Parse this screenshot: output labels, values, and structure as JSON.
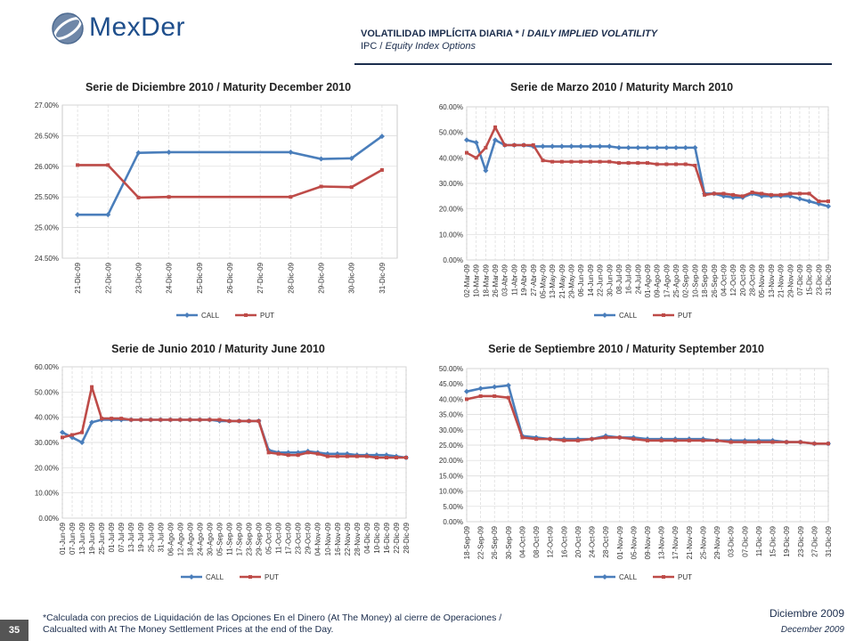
{
  "header": {
    "logo": "MexDer",
    "title_es": "VOLATILIDAD IMPLÍCITA DIARIA *",
    "separator": "/",
    "title_en": "DAILY IMPLIED VOLATILITY",
    "subtitle_es": "IPC",
    "subtitle_en": "Equity Index Options"
  },
  "footnote": {
    "line1": "*Calculada con precios de Liquidación de las Opciones En el Dinero (At The Money) al cierre de Operaciones /",
    "line2": "Calcualted with At The Money Settlement Prices at the end of the Day."
  },
  "footer": {
    "page_number": "35",
    "date_es": "Diciembre 2009",
    "date_en": "December  2009"
  },
  "colors": {
    "call": "#4a7ebb",
    "put": "#be4b48",
    "grid": "#d9d9d9"
  },
  "chart_data": [
    {
      "type": "line",
      "title": "Serie de Diciembre 2010 / Maturity December 2010",
      "ylim": [
        0.245,
        0.27
      ],
      "yticks": [
        "24.50%",
        "25.00%",
        "25.50%",
        "26.00%",
        "26.50%",
        "27.00%"
      ],
      "x": [
        "21-Dic-09",
        "22-Dic-09",
        "23-Dic-09",
        "24-Dic-09",
        "25-Dic-09",
        "26-Dic-09",
        "27-Dic-09",
        "28-Dic-09",
        "29-Dic-09",
        "30-Dic-09",
        "31-Dic-09"
      ],
      "markers": "sparse",
      "series": [
        {
          "name": "CALL",
          "values": [
            0.2521,
            0.2521,
            0.2622,
            0.2623,
            null,
            null,
            null,
            0.2623,
            0.2612,
            0.2613,
            0.2649
          ]
        },
        {
          "name": "PUT",
          "values": [
            0.2602,
            0.2602,
            0.2549,
            0.255,
            null,
            null,
            null,
            0.255,
            0.2567,
            0.2566,
            0.2594
          ]
        }
      ],
      "grid": true,
      "legend": "bottom"
    },
    {
      "type": "line",
      "title": "Serie de Marzo 2010 / Maturity March 2010",
      "ylim": [
        0,
        0.6
      ],
      "yticks": [
        "0.00%",
        "10.00%",
        "20.00%",
        "30.00%",
        "40.00%",
        "50.00%",
        "60.00%"
      ],
      "x": [
        "02-Mar-09",
        "10-Mar-09",
        "18-Mar-09",
        "26-Mar-09",
        "03-Abr-09",
        "11-Abr-09",
        "19-Abr-09",
        "27-Abr-09",
        "05-May-09",
        "13-May-09",
        "21-May-09",
        "29-May-09",
        "06-Jun-09",
        "14-Jun-09",
        "22-Jun-09",
        "30-Jun-09",
        "08-Jul-09",
        "16-Jul-09",
        "24-Jul-09",
        "01-Ago-09",
        "09-Ago-09",
        "17-Ago-09",
        "25-Ago-09",
        "02-Sep-09",
        "10-Sep-09",
        "18-Sep-09",
        "26-Sep-09",
        "04-Oct-09",
        "12-Oct-09",
        "20-Oct-09",
        "28-Oct-09",
        "05-Nov-09",
        "13-Nov-09",
        "21-Nov-09",
        "29-Nov-09",
        "07-Dic-09",
        "15-Dic-09",
        "23-Dic-09",
        "31-Dic-09"
      ],
      "markers": "dense",
      "series": [
        {
          "name": "CALL",
          "values": [
            0.47,
            0.46,
            0.35,
            0.47,
            0.45,
            0.45,
            0.45,
            0.445,
            0.445,
            0.445,
            0.445,
            0.445,
            0.445,
            0.445,
            0.445,
            0.445,
            0.44,
            0.44,
            0.44,
            0.44,
            0.44,
            0.44,
            0.44,
            0.44,
            0.44,
            0.26,
            0.26,
            0.25,
            0.245,
            0.245,
            0.26,
            0.25,
            0.25,
            0.25,
            0.25,
            0.24,
            0.23,
            0.22,
            0.21
          ]
        },
        {
          "name": "PUT",
          "values": [
            0.42,
            0.4,
            0.44,
            0.52,
            0.45,
            0.45,
            0.45,
            0.45,
            0.39,
            0.385,
            0.385,
            0.385,
            0.385,
            0.385,
            0.385,
            0.385,
            0.38,
            0.38,
            0.38,
            0.38,
            0.375,
            0.375,
            0.375,
            0.375,
            0.37,
            0.255,
            0.26,
            0.26,
            0.255,
            0.25,
            0.265,
            0.26,
            0.255,
            0.255,
            0.26,
            0.26,
            0.26,
            0.23,
            0.23
          ]
        }
      ],
      "grid": true,
      "legend": "bottom"
    },
    {
      "type": "line",
      "title": "Serie de Junio 2010 / Maturity June 2010",
      "ylim": [
        0,
        0.6
      ],
      "yticks": [
        "0.00%",
        "10.00%",
        "20.00%",
        "30.00%",
        "40.00%",
        "50.00%",
        "60.00%"
      ],
      "x": [
        "01-Jun-09",
        "07-Jun-09",
        "13-Jun-09",
        "19-Jun-09",
        "25-Jun-09",
        "01-Jul-09",
        "07-Jul-09",
        "13-Jul-09",
        "19-Jul-09",
        "25-Jul-09",
        "31-Jul-09",
        "06-Ago-09",
        "12-Ago-09",
        "18-Ago-09",
        "24-Ago-09",
        "30-Ago-09",
        "05-Sep-09",
        "11-Sep-09",
        "17-Sep-09",
        "23-Sep-09",
        "29-Sep-09",
        "05-Oct-09",
        "11-Oct-09",
        "17-Oct-09",
        "23-Oct-09",
        "29-Oct-09",
        "04-Nov-09",
        "10-Nov-09",
        "16-Nov-09",
        "22-Nov-09",
        "28-Nov-09",
        "04-Dic-09",
        "10-Dic-09",
        "16-Dic-09",
        "22-Dic-09",
        "28-Dic-09"
      ],
      "markers": "dense",
      "series": [
        {
          "name": "CALL",
          "values": [
            0.34,
            0.32,
            0.3,
            0.38,
            0.39,
            0.39,
            0.39,
            0.39,
            0.39,
            0.39,
            0.39,
            0.39,
            0.39,
            0.39,
            0.39,
            0.39,
            0.385,
            0.385,
            0.385,
            0.385,
            0.385,
            0.27,
            0.26,
            0.26,
            0.26,
            0.265,
            0.26,
            0.255,
            0.255,
            0.255,
            0.25,
            0.25,
            0.25,
            0.25,
            0.245,
            0.24
          ]
        },
        {
          "name": "PUT",
          "values": [
            0.32,
            0.33,
            0.34,
            0.52,
            0.395,
            0.395,
            0.395,
            0.39,
            0.39,
            0.39,
            0.39,
            0.39,
            0.39,
            0.39,
            0.39,
            0.39,
            0.39,
            0.385,
            0.385,
            0.385,
            0.385,
            0.26,
            0.255,
            0.25,
            0.25,
            0.26,
            0.255,
            0.245,
            0.245,
            0.245,
            0.245,
            0.245,
            0.24,
            0.24,
            0.24,
            0.24
          ]
        }
      ],
      "grid": true,
      "legend": "bottom"
    },
    {
      "type": "line",
      "title": "Serie de Septiembre 2010 / Maturity September 2010",
      "ylim": [
        0,
        0.5
      ],
      "yticks": [
        "0.00%",
        "5.00%",
        "10.00%",
        "15.00%",
        "20.00%",
        "25.00%",
        "30.00%",
        "35.00%",
        "40.00%",
        "45.00%",
        "50.00%"
      ],
      "x": [
        "18-Sep-09",
        "22-Sep-09",
        "26-Sep-09",
        "30-Sep-09",
        "04-Oct-09",
        "08-Oct-09",
        "12-Oct-09",
        "16-Oct-09",
        "20-Oct-09",
        "24-Oct-09",
        "28-Oct-09",
        "01-Nov-09",
        "05-Nov-09",
        "09-Nov-09",
        "13-Nov-09",
        "17-Nov-09",
        "21-Nov-09",
        "25-Nov-09",
        "29-Nov-09",
        "03-Dic-09",
        "07-Dic-09",
        "11-Dic-09",
        "15-Dic-09",
        "19-Dic-09",
        "23-Dic-09",
        "27-Dic-09",
        "31-Dic-09"
      ],
      "markers": "dense",
      "series": [
        {
          "name": "CALL",
          "values": [
            0.425,
            0.435,
            0.44,
            0.445,
            0.28,
            0.275,
            0.27,
            0.27,
            0.27,
            0.27,
            0.28,
            0.275,
            0.275,
            0.27,
            0.27,
            0.27,
            0.27,
            0.27,
            0.265,
            0.265,
            0.265,
            0.265,
            0.265,
            0.26,
            0.26,
            0.255,
            0.255
          ]
        },
        {
          "name": "PUT",
          "values": [
            0.4,
            0.41,
            0.41,
            0.405,
            0.275,
            0.27,
            0.27,
            0.265,
            0.265,
            0.27,
            0.275,
            0.275,
            0.27,
            0.265,
            0.265,
            0.265,
            0.265,
            0.265,
            0.265,
            0.26,
            0.26,
            0.26,
            0.26,
            0.26,
            0.26,
            0.255,
            0.255
          ]
        }
      ],
      "grid": true,
      "legend": "bottom"
    }
  ]
}
